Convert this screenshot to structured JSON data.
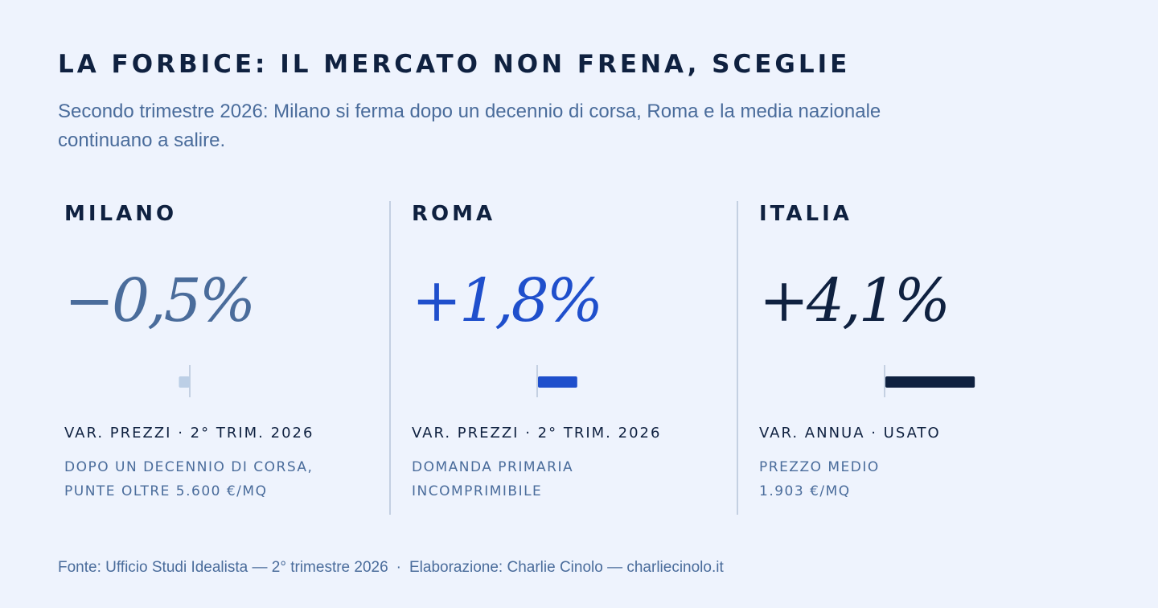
{
  "title": "LA FORBICE: IL MERCATO NON FRENA, SCEGLIE",
  "subtitle": "Secondo trimestre 2026: Milano si ferma dopo un decennio di corsa, Roma e la media nazionale continuano a salire.",
  "colors": {
    "background": "#eef3fd",
    "ink": "#0f2140",
    "muted": "#4a6c9b",
    "milano": "#4a6c9b",
    "milano_bar": "#bccfe6",
    "roma": "#1f4fcc",
    "italia": "#0f2140",
    "baseline": "#c4d0e2"
  },
  "chart_data": {
    "type": "bar",
    "categories": [
      "MILANO",
      "ROMA",
      "ITALIA"
    ],
    "values": [
      -0.5,
      1.8,
      4.1
    ],
    "unit": "%",
    "xlim": [
      -7,
      9
    ],
    "grid": false,
    "panels": [
      {
        "city": "MILANO",
        "value": -0.5,
        "value_label": "−0,5%",
        "metric": "VAR. PREZZI · 2° TRIM. 2026",
        "note": [
          "DOPO UN DECENNIO DI CORSA,",
          "PUNTE OLTRE 5.600 €/MQ"
        ]
      },
      {
        "city": "ROMA",
        "value": 1.8,
        "value_label": "+1,8%",
        "metric": "VAR. PREZZI · 2° TRIM. 2026",
        "note": [
          "DOMANDA PRIMARIA",
          "INCOMPRIMIBILE"
        ]
      },
      {
        "city": "ITALIA",
        "value": 4.1,
        "value_label": "+4,1%",
        "metric": "VAR. ANNUA · USATO",
        "note": [
          "PREZZO MEDIO",
          "1.903 €/MQ"
        ]
      }
    ]
  },
  "footer": {
    "source": "Fonte: Ufficio Studi Idealista — 2° trimestre 2026",
    "separator": "·",
    "credit": "Elaborazione: Charlie Cinolo — charliecinolo.it"
  }
}
